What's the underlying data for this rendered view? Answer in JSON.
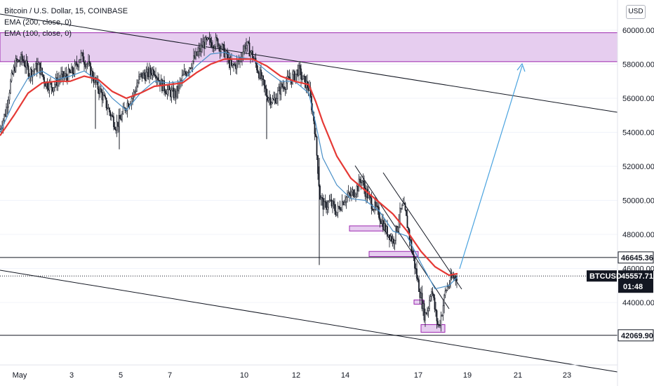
{
  "legend": {
    "title": "Bitcoin / U.S. Dollar, 15, COINBASE",
    "ema200": "EMA (200, close, 0)",
    "ema100": "EMA (100, close, 0)"
  },
  "currency_button": "USD",
  "price_axis": {
    "ticks": [
      "60000.00",
      "58000.00",
      "56000.00",
      "54000.00",
      "52000.00",
      "50000.00",
      "48000.00",
      "46000.00",
      "44000.00"
    ],
    "tick_values": [
      60000,
      58000,
      56000,
      54000,
      52000,
      50000,
      48000,
      46000,
      44000
    ],
    "tags": {
      "resistance": "46645.36",
      "symbol": "BTCUSD",
      "last_price": "45557.71",
      "countdown": "01:48",
      "support": "42069.90"
    }
  },
  "time_axis": {
    "labels": [
      "May",
      "3",
      "5",
      "7",
      "10",
      "12",
      "14",
      "17",
      "19",
      "21",
      "23"
    ]
  },
  "colors": {
    "ema_red": "#e53935",
    "ema_blue": "#4a90c8",
    "zone_fill": "#e6cdef",
    "zone_border": "#9c27b0",
    "projection": "#4aa3df"
  },
  "chart_data": {
    "type": "candlestick",
    "ylim": [
      40500,
      61500
    ],
    "horizontal_levels": [
      46645.36,
      42069.9
    ],
    "last_price": 45557.71,
    "supply_zone": [
      58150,
      59850
    ],
    "price_path": [
      [
        0,
        54200
      ],
      [
        8,
        55200
      ],
      [
        15,
        56900
      ],
      [
        22,
        58050
      ],
      [
        32,
        58300
      ],
      [
        42,
        57500
      ],
      [
        55,
        57900
      ],
      [
        65,
        56900
      ],
      [
        75,
        56700
      ],
      [
        85,
        57200
      ],
      [
        95,
        57300
      ],
      [
        105,
        57600
      ],
      [
        115,
        58500
      ],
      [
        125,
        58000
      ],
      [
        135,
        57000
      ],
      [
        145,
        56200
      ],
      [
        155,
        55300
      ],
      [
        165,
        54400
      ],
      [
        172,
        54800
      ],
      [
        180,
        55600
      ],
      [
        190,
        56200
      ],
      [
        200,
        57300
      ],
      [
        210,
        57400
      ],
      [
        220,
        57700
      ],
      [
        230,
        56800
      ],
      [
        240,
        56400
      ],
      [
        250,
        56200
      ],
      [
        260,
        57200
      ],
      [
        270,
        57900
      ],
      [
        280,
        58500
      ],
      [
        290,
        59200
      ],
      [
        300,
        59300
      ],
      [
        310,
        59300
      ],
      [
        320,
        58700
      ],
      [
        330,
        57800
      ],
      [
        340,
        58100
      ],
      [
        350,
        59200
      ],
      [
        360,
        58500
      ],
      [
        370,
        57400
      ],
      [
        380,
        56200
      ],
      [
        390,
        55800
      ],
      [
        400,
        56600
      ],
      [
        410,
        57000
      ],
      [
        420,
        57300
      ],
      [
        425,
        57700
      ],
      [
        430,
        57200
      ],
      [
        440,
        56600
      ],
      [
        448,
        54500
      ],
      [
        452,
        52400
      ],
      [
        456,
        50200
      ],
      [
        462,
        49600
      ],
      [
        470,
        49900
      ],
      [
        480,
        49300
      ],
      [
        490,
        50100
      ],
      [
        500,
        50300
      ],
      [
        510,
        50800
      ],
      [
        515,
        51300
      ],
      [
        520,
        50600
      ],
      [
        530,
        49800
      ],
      [
        540,
        49200
      ],
      [
        545,
        48700
      ],
      [
        550,
        48200
      ],
      [
        555,
        48000
      ],
      [
        560,
        47600
      ],
      [
        565,
        48300
      ],
      [
        570,
        49200
      ],
      [
        575,
        49700
      ],
      [
        580,
        48700
      ],
      [
        585,
        47500
      ],
      [
        590,
        46400
      ],
      [
        595,
        45300
      ],
      [
        600,
        44300
      ],
      [
        605,
        43200
      ],
      [
        610,
        43700
      ],
      [
        615,
        44900
      ],
      [
        620,
        43500
      ],
      [
        625,
        42500
      ],
      [
        630,
        43500
      ],
      [
        635,
        44700
      ],
      [
        640,
        45100
      ],
      [
        645,
        45500
      ],
      [
        652,
        45557
      ]
    ],
    "ema100_path": [
      [
        0,
        54000
      ],
      [
        20,
        55800
      ],
      [
        40,
        57200
      ],
      [
        60,
        57600
      ],
      [
        80,
        57100
      ],
      [
        100,
        57300
      ],
      [
        120,
        57600
      ],
      [
        140,
        57000
      ],
      [
        160,
        56000
      ],
      [
        180,
        55300
      ],
      [
        200,
        56300
      ],
      [
        220,
        57000
      ],
      [
        240,
        56900
      ],
      [
        260,
        57000
      ],
      [
        280,
        57900
      ],
      [
        300,
        58600
      ],
      [
        320,
        58700
      ],
      [
        340,
        58400
      ],
      [
        360,
        58300
      ],
      [
        380,
        57600
      ],
      [
        400,
        57000
      ],
      [
        420,
        57000
      ],
      [
        440,
        56300
      ],
      [
        450,
        54500
      ],
      [
        460,
        52500
      ],
      [
        480,
        50900
      ],
      [
        500,
        50100
      ],
      [
        520,
        50000
      ],
      [
        540,
        49400
      ],
      [
        560,
        48200
      ],
      [
        580,
        47900
      ],
      [
        600,
        46300
      ],
      [
        620,
        44800
      ],
      [
        640,
        45000
      ],
      [
        652,
        45500
      ]
    ],
    "ema200_path": [
      [
        0,
        53800
      ],
      [
        20,
        55000
      ],
      [
        40,
        56300
      ],
      [
        60,
        56900
      ],
      [
        80,
        57000
      ],
      [
        100,
        57000
      ],
      [
        120,
        57300
      ],
      [
        140,
        57100
      ],
      [
        160,
        56400
      ],
      [
        180,
        56000
      ],
      [
        200,
        56300
      ],
      [
        220,
        56700
      ],
      [
        240,
        56800
      ],
      [
        260,
        56900
      ],
      [
        280,
        57500
      ],
      [
        300,
        58000
      ],
      [
        320,
        58300
      ],
      [
        340,
        58300
      ],
      [
        360,
        58300
      ],
      [
        380,
        57900
      ],
      [
        400,
        57300
      ],
      [
        420,
        57000
      ],
      [
        440,
        56800
      ],
      [
        450,
        55800
      ],
      [
        460,
        54600
      ],
      [
        480,
        52600
      ],
      [
        500,
        51300
      ],
      [
        520,
        50600
      ],
      [
        540,
        49900
      ],
      [
        560,
        49200
      ],
      [
        580,
        48200
      ],
      [
        600,
        47000
      ],
      [
        620,
        46100
      ],
      [
        640,
        45600
      ],
      [
        652,
        45700
      ]
    ],
    "demand_boxes": [
      [
        48500,
        48200
      ],
      [
        47000,
        46700
      ],
      [
        44150,
        43900
      ],
      [
        42700,
        42250
      ]
    ]
  }
}
